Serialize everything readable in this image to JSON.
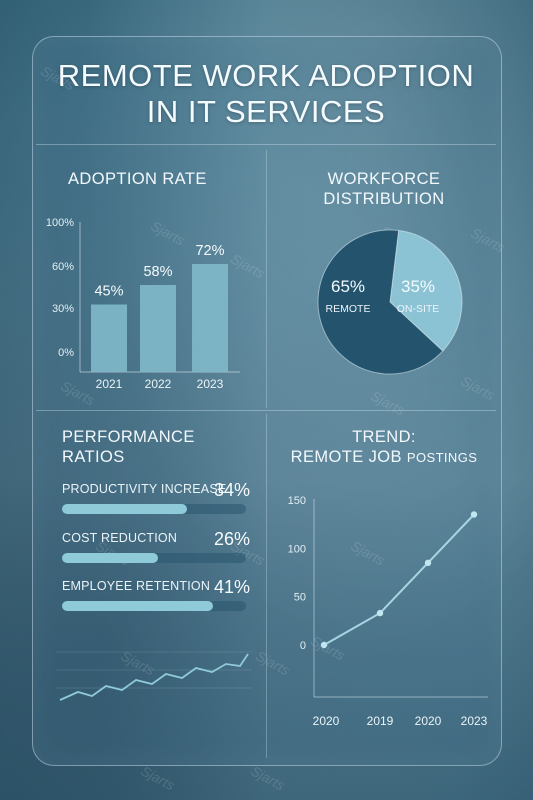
{
  "title_line1": "REMOTE WORK ADOPTION",
  "title_line2": "IN IT SERVICES",
  "watermark": "Sjarts",
  "colors": {
    "accent": "#8fcad9",
    "dark": "#24536e",
    "light": "#8cc3d4"
  },
  "chart_data": [
    {
      "type": "bar",
      "title": "ADOPTION RATE",
      "categories": [
        "2021",
        "2022",
        "2023"
      ],
      "values": [
        45,
        58,
        72
      ],
      "data_labels": [
        "45%",
        "58%",
        "72%"
      ],
      "y_ticks": [
        "100%",
        "60%",
        "30%",
        "0%"
      ],
      "ylim": [
        0,
        100
      ]
    },
    {
      "type": "pie",
      "title_line1": "WORKFORCE",
      "title_line2": "DISTRIBUTION",
      "slices": [
        {
          "label": "REMOTE",
          "value": 65,
          "value_label": "65%",
          "color": "#24536e"
        },
        {
          "label": "ON-SITE",
          "value": 35,
          "value_label": "35%",
          "color": "#8cc3d4"
        }
      ]
    },
    {
      "type": "bar",
      "title_line1": "PERFORMANCE",
      "title_line2": "RATIOS",
      "items": [
        {
          "label": "PRODUCTIVITY INCREASE",
          "value": 34,
          "value_label": "34%"
        },
        {
          "label": "COST REDUCTION",
          "value": 26,
          "value_label": "26%"
        },
        {
          "label": "EMPLOYEE RETENTION",
          "value": 41,
          "value_label": "41%"
        }
      ]
    },
    {
      "type": "line",
      "title_line1": "TREND:",
      "title_line2_main": "REMOTE JOB",
      "title_line2_small": "POSTINGS",
      "x": [
        "2020",
        "2019",
        "2020",
        "2023"
      ],
      "y": [
        0,
        33,
        85,
        135
      ],
      "y_ticks": [
        "150",
        "100",
        "50",
        "0"
      ],
      "ylim": [
        0,
        150
      ]
    }
  ]
}
